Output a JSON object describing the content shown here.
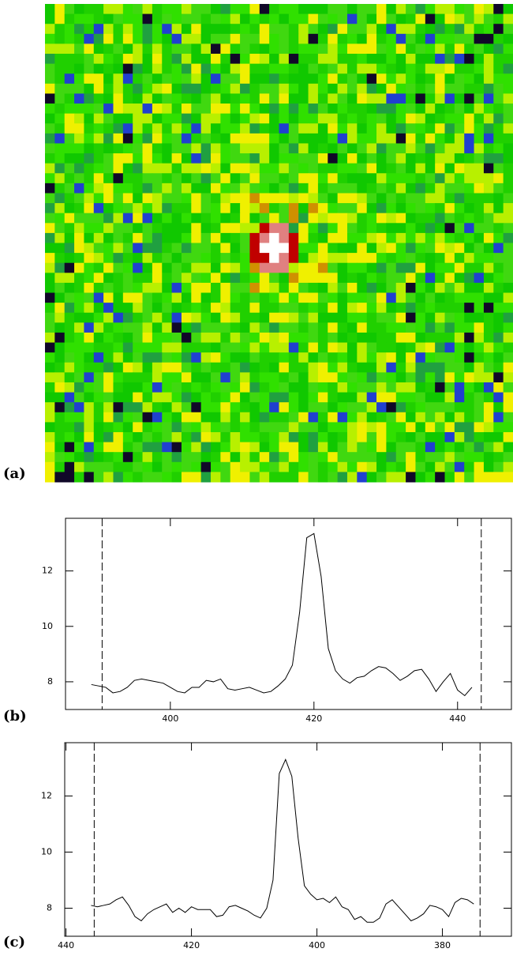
{
  "chart_data": [
    {
      "type": "image",
      "label": "(a)"
    },
    {
      "type": "line",
      "label": "(b)",
      "color": "#000000",
      "x": [
        389,
        390,
        391,
        392,
        393,
        394,
        395,
        396,
        397,
        398,
        399,
        400,
        401,
        402,
        403,
        404,
        405,
        406,
        407,
        408,
        409,
        410,
        411,
        412,
        413,
        414,
        415,
        416,
        417,
        418,
        419,
        420,
        421,
        422,
        423,
        424,
        425,
        426,
        427,
        428,
        429,
        430,
        431,
        432,
        433,
        434,
        435,
        436,
        437,
        438,
        439,
        440,
        441,
        442
      ],
      "values": [
        7.9,
        7.85,
        7.8,
        7.6,
        7.65,
        7.8,
        8.05,
        8.1,
        8.05,
        8.0,
        7.95,
        7.8,
        7.65,
        7.6,
        7.8,
        7.8,
        8.05,
        8.0,
        8.1,
        7.75,
        7.7,
        7.75,
        7.8,
        7.7,
        7.6,
        7.65,
        7.85,
        8.1,
        8.6,
        10.5,
        13.2,
        13.35,
        11.8,
        9.2,
        8.4,
        8.1,
        7.95,
        8.15,
        8.2,
        8.4,
        8.55,
        8.5,
        8.3,
        8.05,
        8.2,
        8.4,
        8.45,
        8.1,
        7.65,
        8.0,
        8.3,
        7.7,
        7.5,
        7.8
      ],
      "xlim": [
        385.4,
        447.5
      ],
      "ylim": [
        7.0,
        13.9
      ],
      "xticks": [
        400,
        420,
        440
      ],
      "yticks": [
        8,
        10,
        12
      ],
      "vlines": [
        390.5,
        443.3
      ]
    },
    {
      "type": "line",
      "label": "(c)",
      "color": "#000000",
      "x": [
        436,
        435,
        434,
        433,
        432,
        431,
        430,
        429,
        428,
        427,
        426,
        425,
        424,
        423,
        422,
        421,
        420,
        419,
        418,
        417,
        416,
        415,
        414,
        413,
        412,
        411,
        410,
        409,
        408,
        407,
        406,
        405,
        404,
        403,
        402,
        401,
        400,
        399,
        398,
        397,
        396,
        395,
        394,
        393,
        392,
        391,
        390,
        389,
        388,
        387,
        386,
        385,
        384,
        383,
        382,
        381,
        380,
        379,
        378,
        377,
        376,
        375
      ],
      "values": [
        8.1,
        8.05,
        8.1,
        8.15,
        8.3,
        8.4,
        8.1,
        7.7,
        7.55,
        7.8,
        7.95,
        8.05,
        8.15,
        7.85,
        8.0,
        7.85,
        8.05,
        7.95,
        7.95,
        7.95,
        7.7,
        7.75,
        8.05,
        8.1,
        8.0,
        7.9,
        7.75,
        7.65,
        8.0,
        9.0,
        12.8,
        13.3,
        12.7,
        10.5,
        8.8,
        8.5,
        8.3,
        8.35,
        8.2,
        8.4,
        8.05,
        7.95,
        7.6,
        7.7,
        7.5,
        7.5,
        7.65,
        8.15,
        8.3,
        8.05,
        7.8,
        7.55,
        7.65,
        7.8,
        8.1,
        8.05,
        7.95,
        7.7,
        8.2,
        8.35,
        8.3,
        8.15
      ],
      "xlim": [
        440.2,
        369.0
      ],
      "ylim": [
        7.0,
        13.9
      ],
      "xticks": [
        440,
        420,
        400,
        380
      ],
      "yticks": [
        8,
        10,
        12
      ],
      "vlines": [
        435.5,
        374.0
      ]
    }
  ]
}
